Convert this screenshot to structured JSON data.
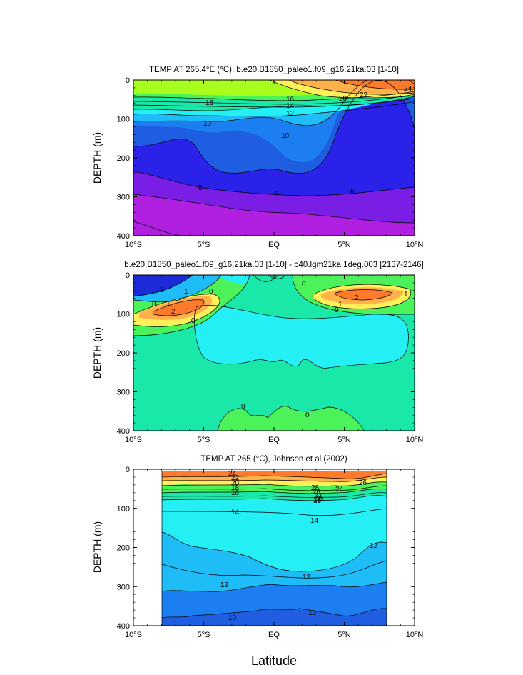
{
  "chart_data": [
    {
      "type": "contour",
      "title": "TEMP AT 265.4°E (°C), b.e20.B1850_paleo1.f09_g16.21ka.03 [1-10]",
      "xlabel": "",
      "ylabel": "DEPTH (m)",
      "xlim": [
        -10,
        10
      ],
      "ylim": [
        400,
        0
      ],
      "x_ticks": [
        "10°S",
        "5°S",
        "EQ",
        "5°N",
        "10°N"
      ],
      "y_ticks": [
        "0",
        "100",
        "200",
        "300",
        "400"
      ],
      "contour_labels": [
        "24",
        "22",
        "20",
        "18",
        "16",
        "14",
        "12",
        "10",
        "10",
        "8",
        "8",
        "6"
      ],
      "fill_colors": [
        "#ff7a2a",
        "#ffb14a",
        "#fff05a",
        "#a8ff1e",
        "#4cf25a",
        "#19e8a9",
        "#23eff5",
        "#1fbdf7",
        "#1b7ff2",
        "#1f5ee0",
        "#2a22e8",
        "#7a1ee6",
        "#b120e0",
        "#d32ad6"
      ]
    },
    {
      "type": "contour",
      "title": "b.e20.B1850_paleo1.f09_g16.21ka.03 [1-10] - b40.lgm21ka.1deg.003 [2137-2146]",
      "xlabel": "",
      "ylabel": "DEPTH (m)",
      "xlim": [
        -10,
        10
      ],
      "ylim": [
        400,
        0
      ],
      "x_ticks": [
        "10°S",
        "5°S",
        "EQ",
        "5°N",
        "10°N"
      ],
      "y_ticks": [
        "0",
        "100",
        "200",
        "300",
        "400"
      ],
      "contour_labels": [
        "2",
        "1",
        "0",
        "0",
        "1",
        "2",
        "0",
        "0",
        "1",
        "2",
        "0",
        "1",
        "0",
        "0"
      ],
      "fill_colors": [
        "#1b2bd8",
        "#1fbdf7",
        "#19e8a9",
        "#4cf25a",
        "#fff05a",
        "#ffb14a",
        "#ff7a2a",
        "#23eff5"
      ]
    },
    {
      "type": "contour",
      "title": "TEMP AT 265 (°C), Johnson et al (2002)",
      "xlabel": "Latitude",
      "ylabel": "DEPTH (m)",
      "xlim": [
        -10,
        10
      ],
      "ylim": [
        400,
        0
      ],
      "x_ticks": [
        "10°S",
        "5°S",
        "EQ",
        "5°N",
        "10°N"
      ],
      "y_ticks": [
        "0",
        "100",
        "200",
        "300",
        "400"
      ],
      "contour_labels": [
        "24",
        "22",
        "20",
        "18",
        "16",
        "14",
        "14",
        "12",
        "12",
        "12",
        "10",
        "10",
        "28",
        "26",
        "24",
        "22",
        "20",
        "18",
        "16",
        "26"
      ],
      "fill_colors": [
        "#ff7a2a",
        "#ffb14a",
        "#fff05a",
        "#4cf25a",
        "#19e8a9",
        "#23eff5",
        "#1fbdf7",
        "#1b7ff2",
        "#1f5ee0"
      ]
    }
  ]
}
